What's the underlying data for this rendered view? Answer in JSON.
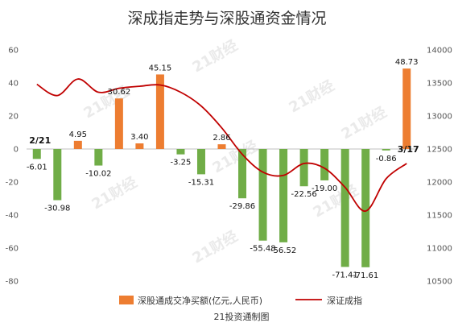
{
  "chart_data": {
    "type": "bar+line",
    "title": "深成指走势与深股通资金情况",
    "source": "21投资通制图",
    "watermark": "21财经",
    "annotations": {
      "start": "2/21",
      "end": "3/17"
    },
    "left_axis": {
      "ylim": [
        -80,
        60
      ],
      "ticks": [
        60,
        40,
        20,
        0,
        -20,
        -40,
        -60,
        -80
      ]
    },
    "right_axis": {
      "ylim": [
        10500,
        14000
      ],
      "ticks": [
        14000,
        13500,
        13000,
        12500,
        12000,
        11500,
        11000,
        10500
      ]
    },
    "series": [
      {
        "name": "深股通成交净买额(亿元,人民币)",
        "kind": "bar",
        "axis": "left",
        "values": [
          -6.01,
          -30.98,
          4.95,
          -10.02,
          30.62,
          3.4,
          45.15,
          -3.25,
          -15.31,
          2.86,
          -29.86,
          -55.48,
          -56.52,
          -22.56,
          -19.0,
          -71.41,
          -71.61,
          -0.86,
          48.73
        ],
        "labels": [
          "-6.01",
          "-30.98",
          "4.95",
          "-10.02",
          "30.62",
          "3.40",
          "45.15",
          "-3.25",
          "-15.31",
          "2.86",
          "-29.86",
          "-55.48",
          "-56.52",
          "-22.56",
          "-19.00",
          "-71.41",
          "-71.61",
          "-0.86",
          "48.73"
        ]
      },
      {
        "name": "深证成指",
        "kind": "line",
        "axis": "right",
        "values": [
          13480,
          13310,
          13560,
          13360,
          13420,
          13450,
          13470,
          13360,
          13150,
          12820,
          12420,
          12150,
          12100,
          12280,
          12210,
          11920,
          11560,
          12050,
          12280
        ]
      }
    ],
    "colors": {
      "bar_positive": "#ED7D31",
      "bar_negative": "#70AD47",
      "line": "#C00000",
      "axis": "#BFBFBF"
    }
  }
}
